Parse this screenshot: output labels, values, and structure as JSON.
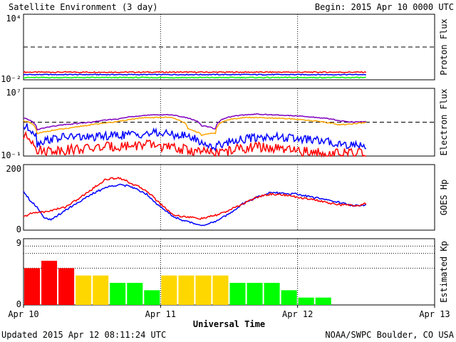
{
  "header": {
    "title": "Satellite Environment (3 day)",
    "begin": "Begin:  2015 Apr 10 0000 UTC"
  },
  "footer": {
    "updated": "Updated 2015 Apr 12 08:11:24 UTC",
    "credit": "NOAA/SWPC Boulder, CO USA"
  },
  "colors": {
    "red": "#ff0000",
    "blue": "#0000ff",
    "green": "#00ff00",
    "purple": "#7f00bf",
    "orange": "#ffa500",
    "yellow": "#ffd700",
    "grid": "#000000"
  },
  "chart_data": [
    {
      "type": "line",
      "ylabel": "Proton Flux",
      "scale": "log",
      "ylim": [
        0.01,
        10000
      ],
      "tick_labels": [
        "10⁴",
        "10⁻²"
      ],
      "threshold": 10,
      "series": [
        {
          "color": "red",
          "x": [
            0,
            0.5,
            1,
            1.5,
            2.0,
            2.5
          ],
          "y": [
            0.05,
            0.05,
            0.05,
            0.05,
            0.05,
            0.05
          ]
        },
        {
          "color": "blue",
          "x": [
            0,
            0.5,
            1,
            1.5,
            2.0,
            2.5
          ],
          "y": [
            0.03,
            0.03,
            0.03,
            0.03,
            0.03,
            0.03
          ]
        },
        {
          "color": "green",
          "x": [
            0,
            0.5,
            1,
            1.5,
            2.0,
            2.5
          ],
          "y": [
            0.016,
            0.016,
            0.016,
            0.016,
            0.016,
            0.016
          ]
        }
      ]
    },
    {
      "type": "line",
      "ylabel": "Electron Flux",
      "scale": "log",
      "ylim": [
        0.1,
        10000000
      ],
      "tick_labels": [
        "10⁷",
        "10⁻¹"
      ],
      "threshold": 1000,
      "series": [
        {
          "color": "purple",
          "x": [
            0,
            0.1,
            0.2,
            0.35,
            0.5,
            0.7,
            0.85,
            0.95,
            1.05,
            1.2,
            1.3,
            1.4,
            1.5,
            1.6,
            1.7,
            1.8,
            1.95,
            2.1,
            2.2,
            2.3,
            2.4,
            2.5
          ],
          "y": [
            3000,
            120,
            300,
            600,
            1000,
            2500,
            6000,
            7000,
            8000,
            3000,
            400,
            150,
            4000,
            7000,
            9000,
            7500,
            6000,
            4000,
            3000,
            1500,
            1000,
            1200
          ]
        },
        {
          "color": "orange",
          "x": [
            0,
            0.1,
            0.2,
            0.35,
            0.5,
            0.7,
            0.85,
            0.95,
            1.05,
            1.2,
            1.3,
            1.4,
            1.5,
            1.6,
            1.7,
            1.8,
            1.95,
            2.1,
            2.2,
            2.3,
            2.4,
            2.5
          ],
          "y": [
            1500,
            40,
            100,
            200,
            500,
            1200,
            3000,
            3500,
            4000,
            150,
            30,
            50,
            2000,
            3500,
            3500,
            3000,
            2500,
            1500,
            1000,
            500,
            600,
            900
          ]
        },
        {
          "color": "blue",
          "x": [
            0,
            0.1,
            0.2,
            0.35,
            0.5,
            0.7,
            0.85,
            0.95,
            1.05,
            1.2,
            1.3,
            1.4,
            1.5,
            1.6,
            1.7,
            1.8,
            1.95,
            2.1,
            2.2,
            2.3,
            2.4,
            2.5
          ],
          "y": [
            300,
            3,
            10,
            20,
            15,
            30,
            40,
            50,
            40,
            20,
            3,
            1,
            5,
            10,
            15,
            20,
            12,
            8,
            5,
            3,
            2,
            2
          ]
        },
        {
          "color": "red",
          "x": [
            0,
            0.1,
            0.2,
            0.35,
            0.5,
            0.7,
            0.85,
            0.95,
            1.05,
            1.2,
            1.3,
            1.4,
            1.5,
            1.6,
            1.7,
            1.8,
            1.95,
            2.1,
            2.2,
            2.3,
            2.4,
            2.5
          ],
          "y": [
            20,
            0.4,
            0.5,
            0.6,
            0.8,
            1.5,
            2,
            2,
            1,
            0.5,
            0.3,
            0.2,
            0.4,
            0.8,
            1.2,
            0.8,
            0.4,
            0.3,
            0.2,
            0.2,
            0.2,
            0.2
          ]
        }
      ]
    },
    {
      "type": "line",
      "ylabel": "GOES Hp",
      "scale": "linear",
      "ylim": [
        0,
        200
      ],
      "tick_labels": [
        "200",
        "0"
      ],
      "series": [
        {
          "color": "blue",
          "x": [
            0,
            0.05,
            0.1,
            0.15,
            0.2,
            0.3,
            0.4,
            0.5,
            0.6,
            0.7,
            0.8,
            0.9,
            1.0,
            1.1,
            1.2,
            1.3,
            1.4,
            1.5,
            1.6,
            1.7,
            1.8,
            1.9,
            2.0,
            2.1,
            2.2,
            2.3,
            2.4,
            2.5
          ],
          "y": [
            120,
            90,
            70,
            40,
            30,
            60,
            85,
            110,
            130,
            140,
            130,
            110,
            70,
            40,
            25,
            15,
            25,
            50,
            80,
            100,
            115,
            112,
            110,
            100,
            95,
            85,
            75,
            75
          ]
        },
        {
          "color": "red",
          "x": [
            0,
            0.05,
            0.1,
            0.15,
            0.2,
            0.3,
            0.4,
            0.5,
            0.6,
            0.7,
            0.8,
            0.9,
            1.0,
            1.1,
            1.2,
            1.3,
            1.4,
            1.5,
            1.6,
            1.7,
            1.8,
            1.9,
            2.0,
            2.1,
            2.2,
            2.3,
            2.4,
            2.5
          ],
          "y": [
            40,
            50,
            55,
            55,
            60,
            70,
            95,
            125,
            155,
            160,
            140,
            120,
            80,
            45,
            40,
            35,
            45,
            60,
            80,
            100,
            110,
            108,
            100,
            95,
            85,
            78,
            75,
            80
          ]
        }
      ]
    },
    {
      "type": "bar",
      "ylabel": "Estimated Kp",
      "ylim": [
        0,
        9
      ],
      "tick_labels": [
        "9",
        "0"
      ],
      "gridlines": [
        5,
        7,
        8
      ],
      "bar_width_days": 0.125,
      "values": [
        5,
        6,
        5,
        4,
        4,
        3,
        3,
        2,
        4,
        4,
        4,
        4,
        3,
        3,
        3,
        2,
        1,
        1
      ],
      "colors": [
        "red",
        "red",
        "red",
        "yellow",
        "yellow",
        "green",
        "green",
        "green",
        "yellow",
        "yellow",
        "yellow",
        "yellow",
        "green",
        "green",
        "green",
        "green",
        "green",
        "green"
      ]
    }
  ],
  "xaxis": {
    "label": "Universal Time",
    "xlim": [
      0,
      3
    ],
    "ticks": [
      0,
      1,
      2,
      3
    ],
    "tick_labels": [
      "Apr 10",
      "Apr 11",
      "Apr 12",
      "Apr 13"
    ]
  }
}
